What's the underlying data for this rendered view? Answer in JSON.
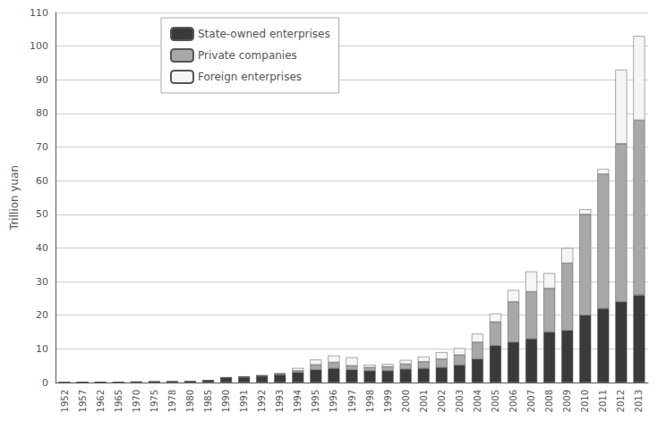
{
  "chart_data": {
    "type": "bar",
    "stacked": true,
    "categories": [
      "1952",
      "1957",
      "1962",
      "1965",
      "1970",
      "1975",
      "1978",
      "1980",
      "1985",
      "1990",
      "1991",
      "1992",
      "1993",
      "1994",
      "1995",
      "1996",
      "1997",
      "1998",
      "1999",
      "2000",
      "2001",
      "2002",
      "2003",
      "2004",
      "2005",
      "2006",
      "2007",
      "2008",
      "2009",
      "2010",
      "2011",
      "2012",
      "2013"
    ],
    "series": [
      {
        "name": "State-owned enterprises",
        "color": "#3a3a3a",
        "values": [
          0.07,
          0.11,
          0.11,
          0.12,
          0.18,
          0.26,
          0.3,
          0.35,
          0.65,
          1.4,
          1.6,
          1.9,
          2.3,
          3.0,
          3.8,
          4.2,
          3.8,
          3.5,
          3.5,
          4.0,
          4.2,
          4.5,
          5.2,
          7.0,
          11.0,
          12.0,
          13.0,
          15.0,
          15.5,
          20.0,
          22.0,
          24.0,
          26.0
        ]
      },
      {
        "name": "Private companies",
        "color": "#a8a8a8",
        "values": [
          0.0,
          0.0,
          0.0,
          0.0,
          0.0,
          0.0,
          0.0,
          0.0,
          0.0,
          0.1,
          0.15,
          0.2,
          0.3,
          0.5,
          1.5,
          1.8,
          1.2,
          1.0,
          1.2,
          1.5,
          2.0,
          2.5,
          3.0,
          5.0,
          7.0,
          12.0,
          14.0,
          13.0,
          20.0,
          30.0,
          40.0,
          47.0,
          52.0
        ]
      },
      {
        "name": "Foreign enterprises",
        "color": "#f5f5f5",
        "values": [
          0.0,
          0.0,
          0.0,
          0.0,
          0.0,
          0.0,
          0.0,
          0.0,
          0.0,
          0.0,
          0.0,
          0.0,
          0.1,
          0.8,
          1.5,
          2.0,
          2.5,
          0.8,
          0.8,
          1.2,
          1.5,
          2.0,
          2.0,
          2.5,
          2.5,
          3.5,
          6.0,
          4.5,
          4.5,
          1.5,
          1.5,
          22.0,
          25.0
        ]
      }
    ],
    "ylabel": "Trillion yuan",
    "ylim": [
      0,
      110
    ],
    "yticks": [
      0,
      10,
      20,
      30,
      40,
      50,
      60,
      70,
      80,
      90,
      100,
      110
    ],
    "grid": true,
    "legend": "upper left"
  }
}
